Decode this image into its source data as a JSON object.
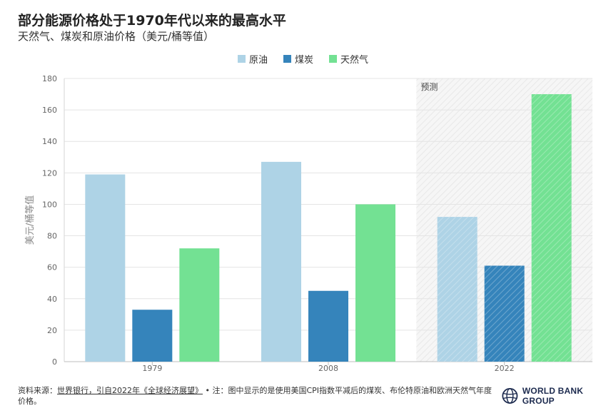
{
  "title": "部分能源价格处于1970年代以来的最高水平",
  "subtitle": "天然气、煤炭和原油价格（美元/桶等值）",
  "chart_data": {
    "type": "bar",
    "categories": [
      "1979",
      "2008",
      "2022"
    ],
    "series": [
      {
        "name": "原油",
        "color": "#aed3e6",
        "values": [
          119,
          127,
          92
        ]
      },
      {
        "name": "煤炭",
        "color": "#3584bb",
        "values": [
          33,
          45,
          61
        ]
      },
      {
        "name": "天然气",
        "color": "#73e193",
        "values": [
          72,
          100,
          170
        ]
      }
    ],
    "ylabel": "美元/桶等值",
    "ylim": [
      0,
      180
    ],
    "yticks": [
      0,
      20,
      40,
      60,
      80,
      100,
      120,
      140,
      160,
      180
    ],
    "grid": true,
    "legend_position": "top-center",
    "forecast": {
      "label": "预测",
      "category": "2022"
    }
  },
  "footer": {
    "source_prefix": "资料来源：",
    "source_link": "世界银行，引自2022年《全球经济展望》",
    "note": " • 注：图中显示的是使用美国CPI指数平减后的煤炭、布伦特原油和欧洲天然气年度价格。"
  },
  "logo": {
    "text": "WORLD BANK GROUP",
    "icon": "globe-icon"
  }
}
